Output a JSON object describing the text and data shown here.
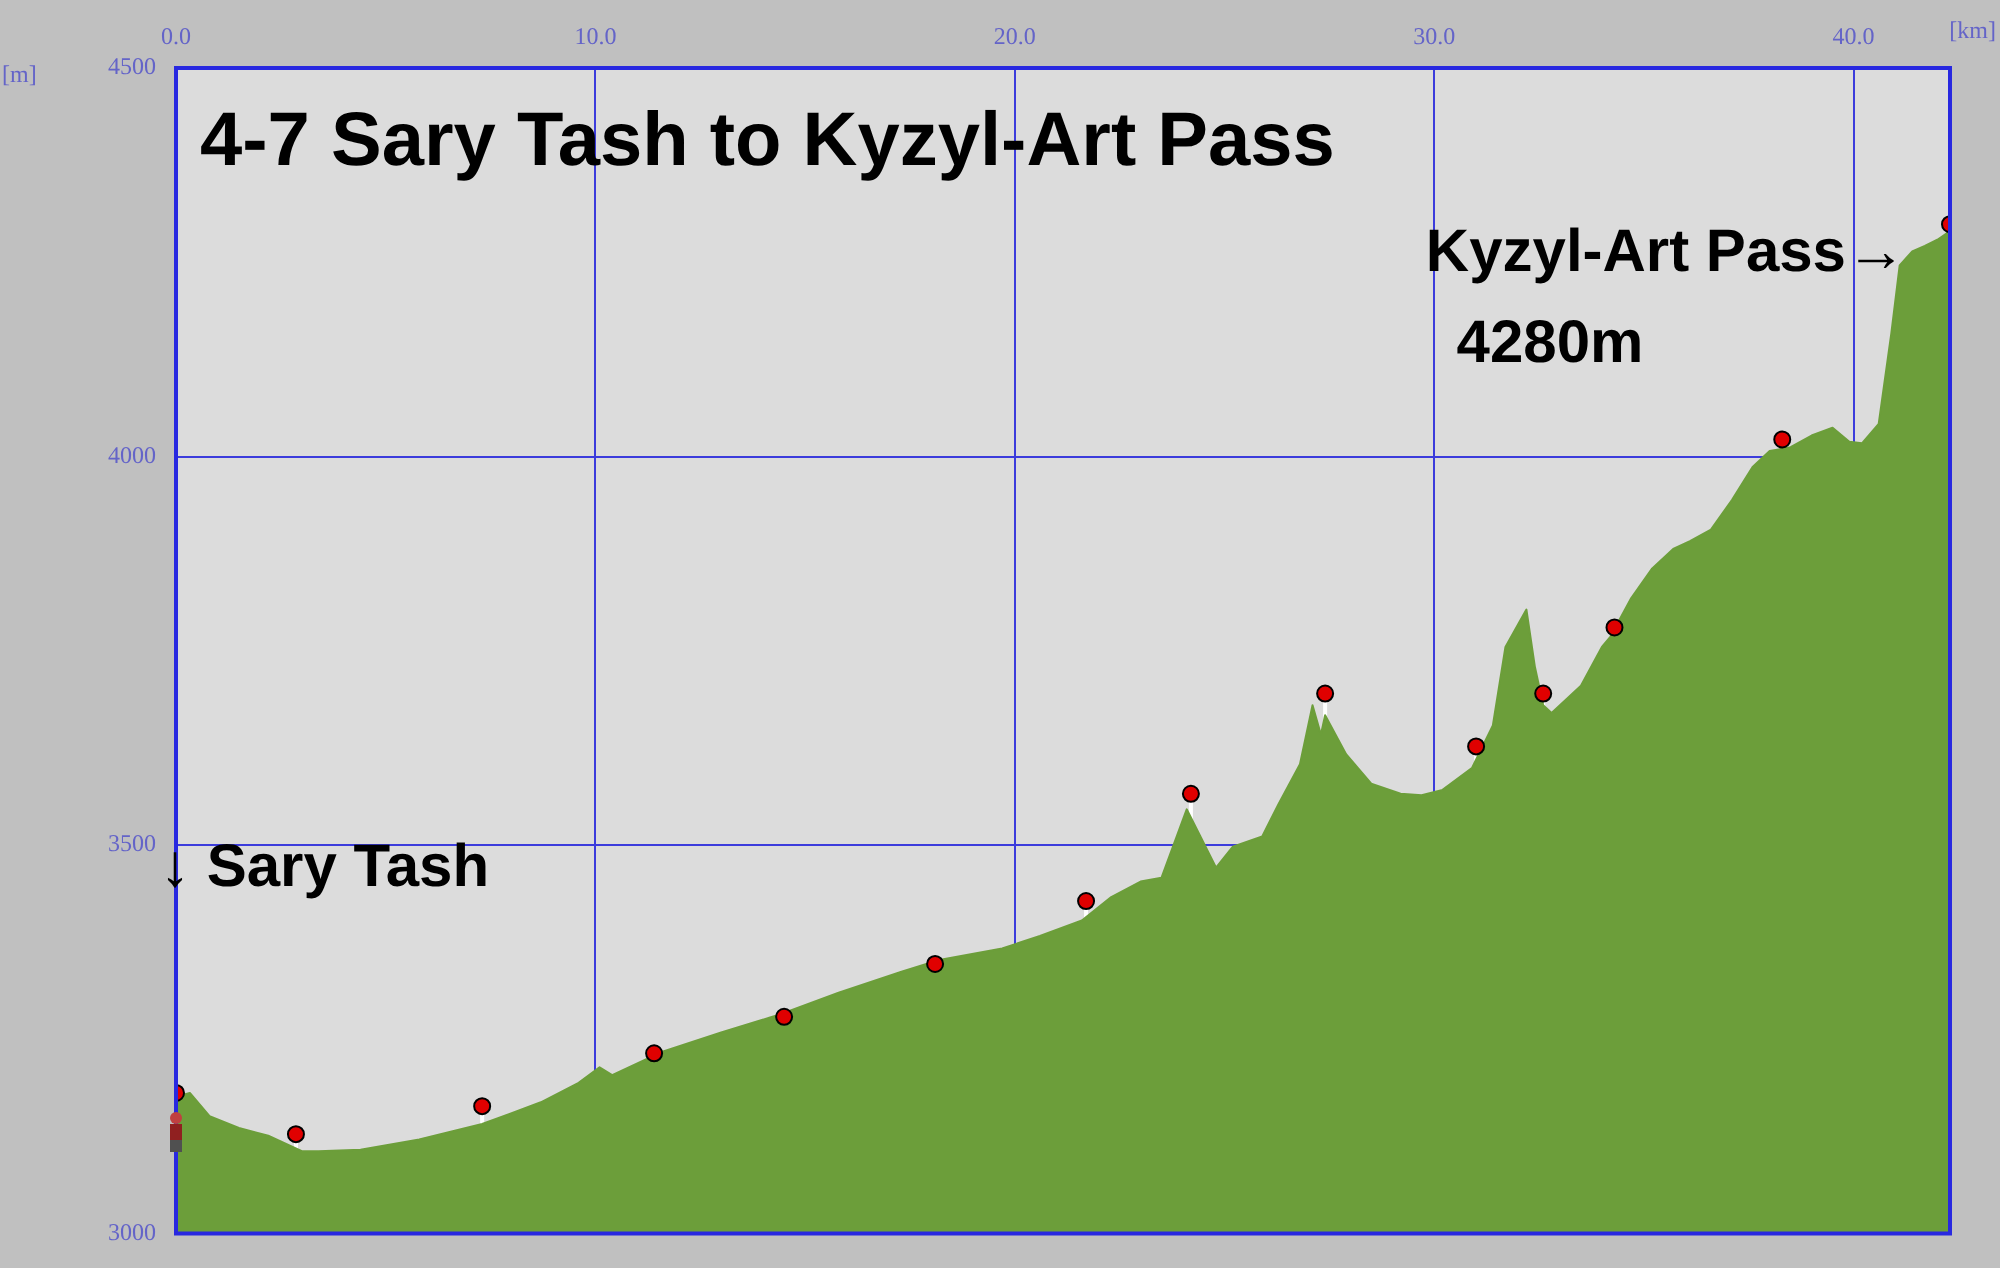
{
  "chart_data": {
    "type": "area",
    "title": "4-7 Sary Tash to Kyzyl-Art Pass",
    "xlabel": "[km]",
    "ylabel": "[m]",
    "xlim": [
      0,
      42.3
    ],
    "xticks": [
      {
        "value": 0,
        "label": "0.0"
      },
      {
        "value": 10,
        "label": "10.0"
      },
      {
        "value": 20,
        "label": "20.0"
      },
      {
        "value": 30,
        "label": "30.0"
      },
      {
        "value": 40,
        "label": "40.0"
      }
    ],
    "ylim": [
      3000,
      4500
    ],
    "yticks": [
      3000,
      3500,
      4000,
      4500
    ],
    "grid": true,
    "legend": false,
    "series": [
      {
        "color": "#6c9e3a",
        "x": [
          0,
          0.33,
          0.8,
          1.5,
          2.2,
          3.0,
          3.4,
          4.4,
          5.8,
          7.3,
          8.7,
          9.6,
          10.1,
          10.4,
          11.6,
          13.0,
          14.4,
          15.8,
          17.3,
          18.2,
          19.7,
          20.6,
          21.6,
          22.3,
          23.0,
          23.5,
          24.1,
          24.8,
          25.2,
          25.9,
          26.3,
          26.8,
          27.1,
          27.3,
          27.4,
          27.9,
          28.5,
          29.2,
          29.7,
          30.2,
          30.9,
          31.4,
          31.7,
          32.2,
          32.4,
          32.6,
          32.8,
          33.5,
          34.0,
          34.2,
          34.7,
          35.2,
          35.7,
          36.1,
          36.6,
          37.1,
          37.6,
          38.0,
          38.5,
          39.0,
          39.5,
          39.9,
          40.2,
          40.6,
          40.9,
          41.1,
          41.4,
          41.7,
          42.0,
          42.3
        ],
        "values": [
          3176,
          3181,
          3151,
          3136,
          3126,
          3106,
          3106,
          3108,
          3121,
          3141,
          3169,
          3194,
          3214,
          3204,
          3234,
          3259,
          3282,
          3310,
          3337,
          3352,
          3367,
          3383,
          3403,
          3433,
          3453,
          3458,
          3546,
          3471,
          3498,
          3511,
          3554,
          3604,
          3680,
          3642,
          3667,
          3617,
          3579,
          3566,
          3564,
          3571,
          3599,
          3654,
          3755,
          3803,
          3730,
          3680,
          3670,
          3705,
          3755,
          3768,
          3818,
          3856,
          3881,
          3891,
          3906,
          3944,
          3987,
          4007,
          4012,
          4027,
          4037,
          4019,
          4017,
          4042,
          4158,
          4246,
          4264,
          4271,
          4279,
          4290
        ]
      },
      {
        "type": "lollipop",
        "color": "#e00000",
        "marker": "circle",
        "x": [
          0,
          2.86,
          7.3,
          11.4,
          14.5,
          18.1,
          21.7,
          24.2,
          27.4,
          31.0,
          32.6,
          34.3,
          38.3,
          42.3
        ],
        "values": [
          3181,
          3128,
          3164,
          3232,
          3279,
          3347,
          3428,
          3566,
          3695,
          3627,
          3695,
          3780,
          4022,
          4299
        ]
      }
    ],
    "annotations": [
      "↓ Sary Tash",
      "Kyzyl-Art Pass→",
      "4280m"
    ]
  }
}
